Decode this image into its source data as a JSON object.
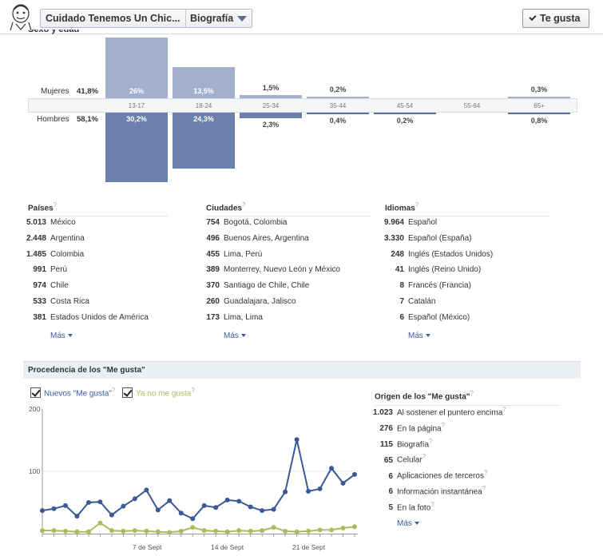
{
  "header": {
    "page_name": "Cuidado Tenemos Un Chic...",
    "view_label": "Biografía",
    "like_button": "Te gusta"
  },
  "demographics": {
    "title_partial": "Sexo y edad",
    "female": {
      "label": "Mujeres",
      "total": "41,8%"
    },
    "male": {
      "label": "Hombres",
      "total": "58,1%"
    },
    "age_groups": [
      {
        "age": "13-17",
        "female": "26%",
        "female_value": 26,
        "male": "30,2%",
        "male_value": 30.2
      },
      {
        "age": "18-24",
        "female": "13,5%",
        "female_value": 13.5,
        "male": "24,3%",
        "male_value": 24.3
      },
      {
        "age": "25-34",
        "female": "1,5%",
        "female_value": 1.5,
        "male": "2,3%",
        "male_value": 2.3
      },
      {
        "age": "35-44",
        "female": "0,2%",
        "female_value": 0.2,
        "male": "0,4%",
        "male_value": 0.4
      },
      {
        "age": "45-54",
        "female": "",
        "female_value": 0,
        "male": "0,2%",
        "male_value": 0.2
      },
      {
        "age": "55-64",
        "female": "",
        "female_value": 0,
        "male": "",
        "male_value": 0
      },
      {
        "age": "65+",
        "female": "0,3%",
        "female_value": 0.3,
        "male": "0,8%",
        "male_value": 0.8
      }
    ]
  },
  "countries": {
    "title": "Países",
    "rows": [
      {
        "n": "5.013",
        "name": "México"
      },
      {
        "n": "2.448",
        "name": "Argentina"
      },
      {
        "n": "1.485",
        "name": "Colombia"
      },
      {
        "n": "991",
        "name": "Perú"
      },
      {
        "n": "974",
        "name": "Chile"
      },
      {
        "n": "533",
        "name": "Costa Rica"
      },
      {
        "n": "381",
        "name": "Estados Unidos de América"
      }
    ],
    "more": "Más"
  },
  "cities": {
    "title": "Ciudades",
    "rows": [
      {
        "n": "754",
        "name": "Bogotá, Colombia"
      },
      {
        "n": "496",
        "name": "Buenos Aires, Argentina"
      },
      {
        "n": "455",
        "name": "Lima, Perú"
      },
      {
        "n": "389",
        "name": "Monterrey, Nuevo León y México"
      },
      {
        "n": "370",
        "name": "Santiago de Chile, Chile"
      },
      {
        "n": "260",
        "name": "Guadalajara, Jalisco"
      },
      {
        "n": "173",
        "name": "Lima, Lima"
      }
    ],
    "more": "Más"
  },
  "languages": {
    "title": "Idiomas",
    "rows": [
      {
        "n": "9.964",
        "name": "Español"
      },
      {
        "n": "3.330",
        "name": "Español (España)"
      },
      {
        "n": "248",
        "name": "Inglés (Estados Unidos)"
      },
      {
        "n": "41",
        "name": "Inglés (Reino Unido)"
      },
      {
        "n": "8",
        "name": "Francés (Francia)"
      },
      {
        "n": "7",
        "name": "Catalán"
      },
      {
        "n": "6",
        "name": "Español (México)"
      }
    ],
    "more": "Más"
  },
  "procedencia": {
    "title": "Procedencia de los \"Me gusta\"",
    "legend_new": "Nuevos \"Me gusta\"",
    "legend_unlike": "Ya no me gusta",
    "color_new": "#3b5998",
    "color_unlike": "#a9bd5c"
  },
  "chart_data": {
    "type": "line",
    "y_ticks": [
      "200",
      "100"
    ],
    "ylim": [
      0,
      200
    ],
    "x_ticks": [
      "7 de Sept",
      "14 de Sept",
      "21 de Sept"
    ],
    "series": [
      {
        "name": "Nuevos \"Me gusta\"",
        "values": [
          37,
          40,
          45,
          28,
          50,
          51,
          30,
          44,
          56,
          70,
          38,
          53,
          33,
          24,
          45,
          42,
          54,
          52,
          43,
          37,
          39,
          67,
          151,
          68,
          72,
          105,
          81,
          95
        ]
      },
      {
        "name": "Ya no me gusta",
        "values": [
          5,
          5,
          4,
          3,
          3,
          17,
          5,
          4,
          5,
          4,
          3,
          2,
          4,
          10,
          5,
          4,
          3,
          5,
          4,
          5,
          10,
          4,
          3,
          4,
          6,
          6,
          9,
          11
        ]
      }
    ]
  },
  "origen": {
    "title": "Origen de los \"Me gusta\"",
    "rows": [
      {
        "n": "1.023",
        "name": "Al sostener el puntero encima"
      },
      {
        "n": "276",
        "name": "En la página"
      },
      {
        "n": "115",
        "name": "Biografía"
      },
      {
        "n": "65",
        "name": "Celular"
      },
      {
        "n": "6",
        "name": "Aplicaciones de terceros"
      },
      {
        "n": "6",
        "name": "Información instantánea"
      },
      {
        "n": "5",
        "name": "En la foto"
      }
    ],
    "more": "Más"
  }
}
